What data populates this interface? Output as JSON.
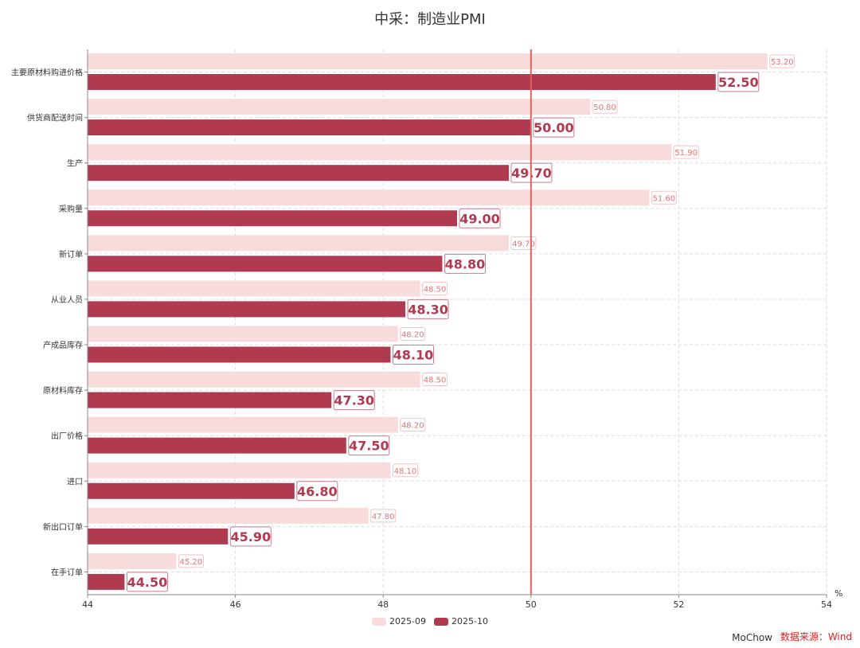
{
  "title": "中采：制造业PMI",
  "footer": {
    "author": "MoChow",
    "source": "数据来源：Wind"
  },
  "colors": {
    "series_prev": "#f8dcdc",
    "series_curr": "#b03a50",
    "ref_line": "#e06060",
    "label_prev": "#e07777"
  },
  "chart_data": {
    "type": "bar",
    "orientation": "horizontal",
    "title": "中采：制造业PMI",
    "unit": "%",
    "xlim": [
      44,
      54
    ],
    "xticks": [
      44,
      46,
      48,
      50,
      52,
      54
    ],
    "reference_line": 50,
    "grid": true,
    "legend_position": "bottom",
    "categories": [
      "主要原材料购进价格",
      "供货商配送时间",
      "生产",
      "采购量",
      "新订单",
      "从业人员",
      "产成品库存",
      "原材料库存",
      "出厂价格",
      "进口",
      "新出口订单",
      "在手订单"
    ],
    "series": [
      {
        "name": "2025-09",
        "values": [
          "53.20",
          "50.80",
          "51.90",
          "51.60",
          "49.70",
          "48.50",
          "48.20",
          "48.50",
          "48.20",
          "48.10",
          "47.80",
          "45.20"
        ]
      },
      {
        "name": "2025-10",
        "values": [
          "52.50",
          "50.00",
          "49.70",
          "49.00",
          "48.80",
          "48.30",
          "48.10",
          "47.30",
          "47.50",
          "46.80",
          "45.90",
          "44.50"
        ]
      }
    ]
  }
}
